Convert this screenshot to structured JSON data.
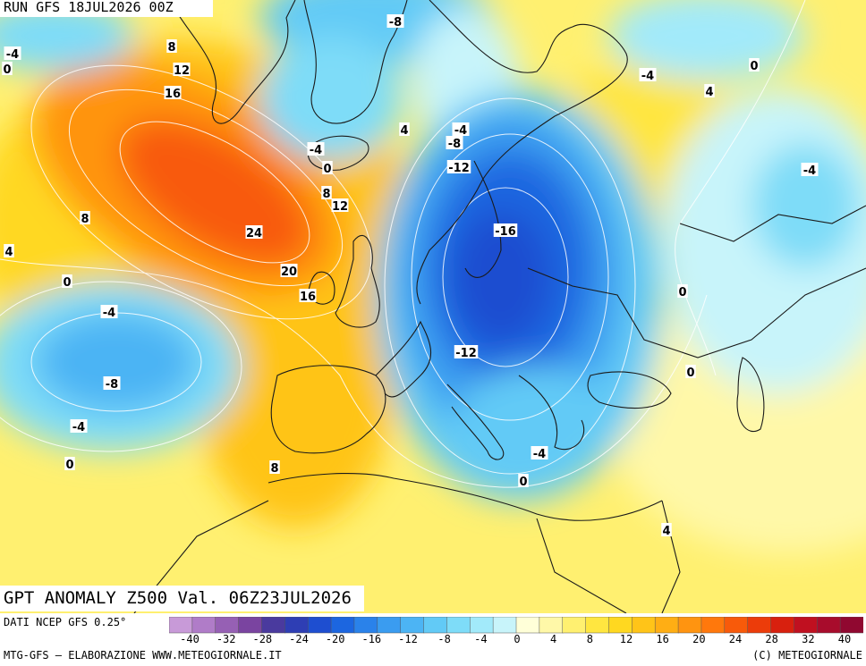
{
  "header": {
    "run_label": "RUN GFS 18JUL2026 00Z",
    "title": "GPT ANOMALY Z500 Val. 06Z23JUL2026"
  },
  "footer": {
    "source": "DATI NCEP GFS 0.25°",
    "credit_left": "MTG-GFS — ELABORAZIONE WWW.METEOGIORNALE.IT",
    "credit_right": "(C) METEOGIORNALE"
  },
  "colorbar": {
    "colors": [
      "#c89ad8",
      "#b07cc8",
      "#9660b4",
      "#7a44a0",
      "#4a3a9e",
      "#2e3eb4",
      "#1e4ed0",
      "#1c66e0",
      "#2a82ea",
      "#3a9cf0",
      "#4cb4f4",
      "#62caf6",
      "#7edcf8",
      "#a2eafa",
      "#c8f4fa",
      "#ffffd8",
      "#fff8a8",
      "#fff070",
      "#ffe640",
      "#ffd820",
      "#ffc418",
      "#ffae14",
      "#ff9410",
      "#ff780c",
      "#f85a0a",
      "#ec3c0a",
      "#d8200e",
      "#c01020",
      "#a80c2c",
      "#900830"
    ],
    "ticks": [
      "-40",
      "-32",
      "-28",
      "-24",
      "-20",
      "-16",
      "-12",
      "-8",
      "-4",
      "0",
      "4",
      "8",
      "12",
      "16",
      "20",
      "24",
      "28",
      "32",
      "40"
    ]
  },
  "map_labels": [
    {
      "text": "-4"
    },
    {
      "text": "8"
    },
    {
      "text": "0"
    },
    {
      "text": "12"
    },
    {
      "text": "16"
    },
    {
      "text": "8"
    },
    {
      "text": "4"
    },
    {
      "text": "24"
    },
    {
      "text": "20"
    },
    {
      "text": "16"
    },
    {
      "text": "0"
    },
    {
      "text": "-4"
    },
    {
      "text": "-8"
    },
    {
      "text": "-4"
    },
    {
      "text": "0"
    },
    {
      "text": "8"
    },
    {
      "text": "-8"
    },
    {
      "text": "-4"
    },
    {
      "text": "0"
    },
    {
      "text": "8"
    },
    {
      "text": "12"
    },
    {
      "text": "4"
    },
    {
      "text": "-4"
    },
    {
      "text": "-8"
    },
    {
      "text": "-12"
    },
    {
      "text": "-16"
    },
    {
      "text": "-12"
    },
    {
      "text": "-4"
    },
    {
      "text": "0"
    },
    {
      "text": "-4"
    },
    {
      "text": "0"
    },
    {
      "text": "4"
    },
    {
      "text": "-4"
    },
    {
      "text": "0"
    },
    {
      "text": "0"
    },
    {
      "text": "4"
    }
  ]
}
